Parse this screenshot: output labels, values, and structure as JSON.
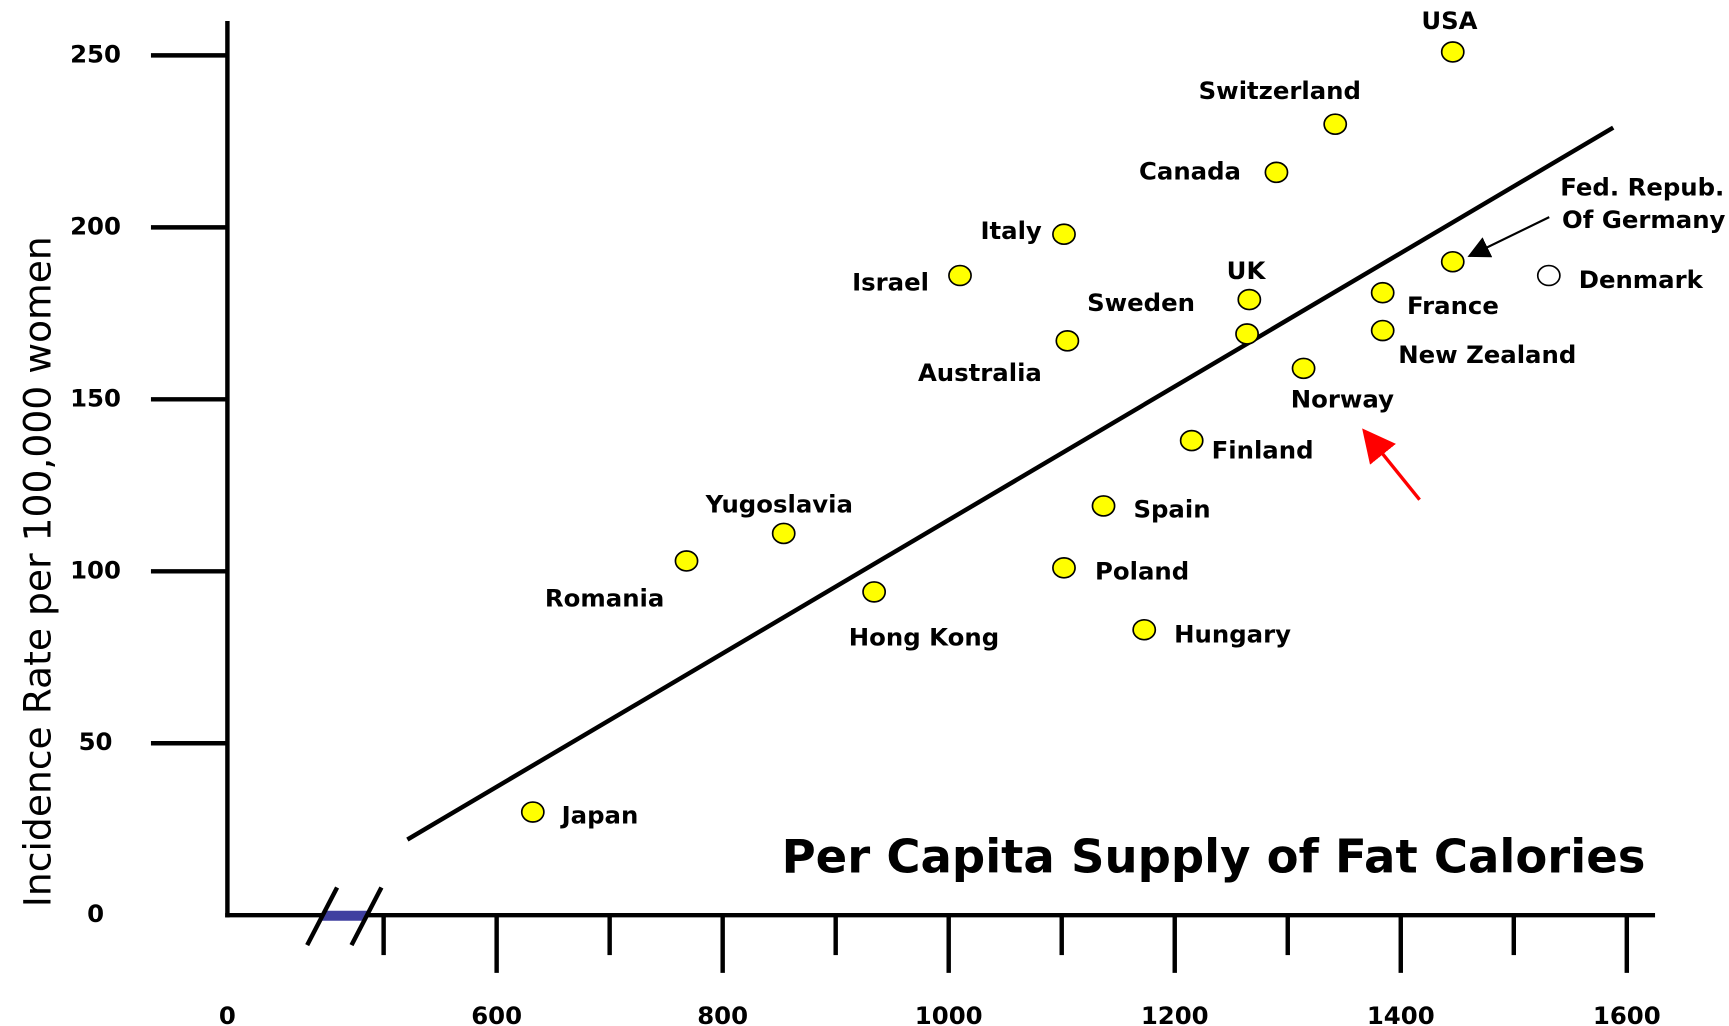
{
  "chart_data": {
    "type": "scatter",
    "title": "Per Capita Supply of Fat Calories",
    "y_label": "Incidence Rate per 100,000 women",
    "labels": [
      "Japan",
      "Romania",
      "Yugoslavia",
      "Hong Kong",
      "Israel",
      "Italy",
      "Australia",
      "Poland",
      "Spain",
      "Hungary",
      "Finland",
      "Sweden",
      "UK",
      "Canada",
      "Norway",
      "Switzerland",
      "France",
      "New Zealand",
      "Fed. Repub. Of Germany",
      "USA",
      "Denmark"
    ],
    "x": [
      632,
      768,
      854,
      934,
      1010,
      1102,
      1105,
      1102,
      1137,
      1173,
      1215,
      1264,
      1266,
      1290,
      1314,
      1342,
      1384,
      1384,
      1446,
      1446,
      1531
    ],
    "y": [
      30,
      103,
      111,
      94,
      186,
      198,
      167,
      101,
      119,
      83,
      138,
      169,
      179,
      216,
      159,
      230,
      181,
      170,
      190,
      251,
      186
    ],
    "colors": [
      "#ffff00",
      "#ffff00",
      "#ffff00",
      "#ffff00",
      "#ffff00",
      "#ffff00",
      "#ffff00",
      "#ffff00",
      "#ffff00",
      "#ffff00",
      "#ffff00",
      "#ffff00",
      "#ffff00",
      "#ffff00",
      "#ffff00",
      "#ffff00",
      "#ffff00",
      "#ffff00",
      "#ffff00",
      "#ffff00",
      "#ffffff"
    ],
    "trend_line": {
      "x": [
        521,
        1588
      ],
      "y": [
        22,
        229
      ]
    },
    "xlim": [
      0,
      1625
    ],
    "x_break": [
      0,
      500
    ],
    "xticks": [
      0,
      600,
      800,
      1000,
      1200,
      1400,
      1600
    ],
    "minor_xticks": [
      500,
      700,
      900,
      1100,
      1300,
      1500
    ],
    "ylim": [
      0,
      260
    ],
    "yticks": [
      0,
      50,
      100,
      150,
      200,
      250
    ]
  }
}
